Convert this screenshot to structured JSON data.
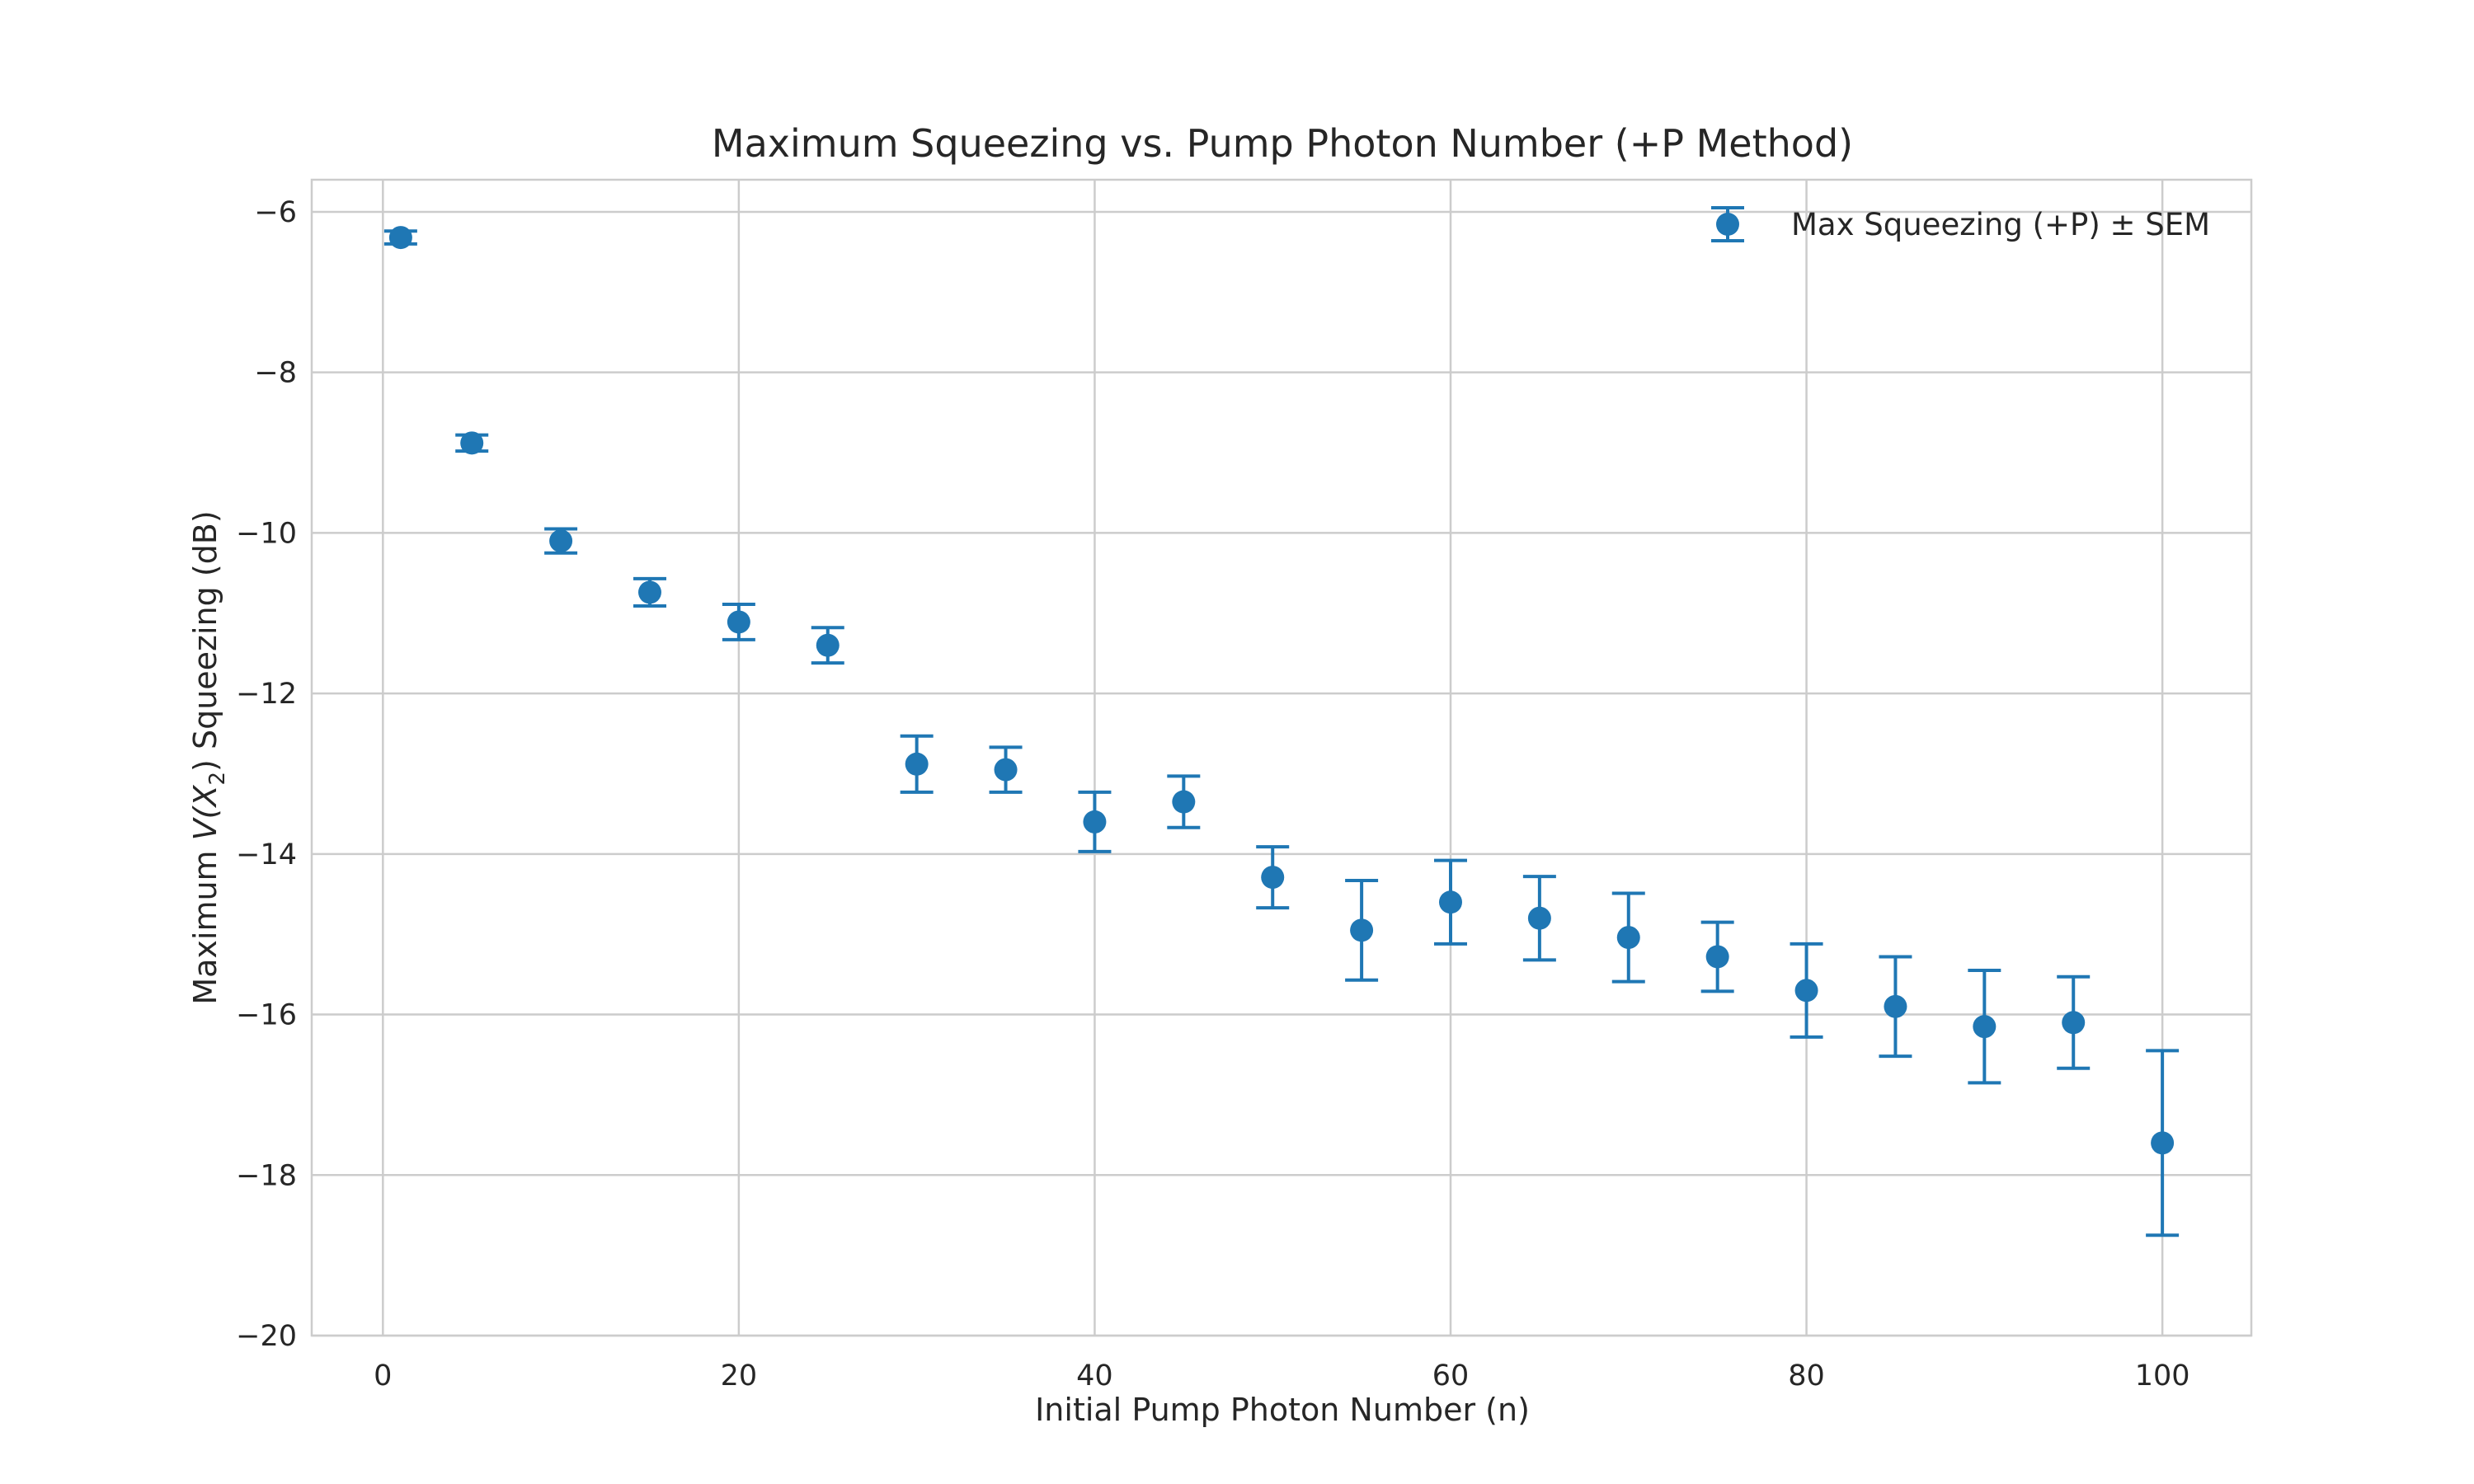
{
  "chart_data": {
    "type": "scatter",
    "title": "Maximum Squeezing vs. Pump Photon Number (+P Method)",
    "xlabel": "Initial Pump Photon Number (n)",
    "ylabel_prefix": "Maximum ",
    "ylabel_math": "V(X",
    "ylabel_sub": "2",
    "ylabel_math_close": ")",
    "ylabel_suffix": " Squeezing (dB)",
    "xlim": [
      -4,
      105
    ],
    "ylim": [
      -20,
      -5.6
    ],
    "x_ticks": [
      0,
      20,
      40,
      60,
      80,
      100
    ],
    "x_tick_labels": [
      "0",
      "20",
      "40",
      "60",
      "80",
      "100"
    ],
    "y_ticks": [
      -6,
      -8,
      -10,
      -12,
      -14,
      -16,
      -18,
      -20
    ],
    "y_tick_labels": [
      "−6",
      "−8",
      "−10",
      "−12",
      "−14",
      "−16",
      "−18",
      "−20"
    ],
    "grid": true,
    "legend_position": "top-right",
    "series": [
      {
        "name": "Max Squeezing (+P) ± SEM",
        "color": "#1f77b4",
        "marker": "circle",
        "x": [
          1,
          5,
          10,
          15,
          20,
          25,
          30,
          35,
          40,
          45,
          50,
          55,
          60,
          65,
          70,
          75,
          80,
          85,
          90,
          95,
          100
        ],
        "y": [
          -6.32,
          -8.88,
          -10.1,
          -10.74,
          -11.11,
          -11.4,
          -12.88,
          -12.95,
          -13.6,
          -13.35,
          -14.29,
          -14.95,
          -14.6,
          -14.8,
          -15.04,
          -15.28,
          -15.7,
          -15.9,
          -16.15,
          -16.1,
          -17.6
        ],
        "err": [
          0.08,
          0.1,
          0.15,
          0.17,
          0.22,
          0.22,
          0.35,
          0.28,
          0.37,
          0.32,
          0.38,
          0.62,
          0.52,
          0.52,
          0.55,
          0.43,
          0.58,
          0.62,
          0.7,
          0.57,
          1.15
        ]
      }
    ]
  }
}
